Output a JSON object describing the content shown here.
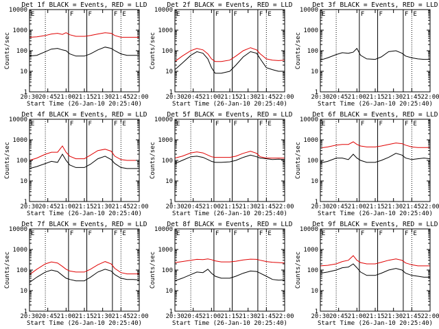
{
  "colors": {
    "background": "#ffffff",
    "axis": "#000000",
    "events": "#000000",
    "lld": "#e00000"
  },
  "shared": {
    "x_ticks": [
      "20:30",
      "20:45",
      "21:00",
      "21:15",
      "21:30",
      "21:45",
      "22:00"
    ],
    "y_ticks": [
      "1",
      "10",
      "100",
      "1000",
      "10000"
    ],
    "xlabel": "Start Time (26-Jan-10 20:25:40)",
    "ylabel": "Counts/sec",
    "solid_markers": [
      "21:02",
      "21:17",
      "21:38"
    ],
    "dotted_markers": [
      "20:43",
      "21:45"
    ],
    "flag_labels": [
      "E",
      "F",
      "F",
      "F",
      "E"
    ]
  },
  "chart_data": [
    {
      "type": "line",
      "title": "Det 1f BLACK = Events, RED = LLD",
      "xlim": [
        "20:30",
        "22:00"
      ],
      "ylim": [
        1,
        10000
      ],
      "log_y": true,
      "x": [
        "20:30",
        "20:36",
        "20:43",
        "20:48",
        "20:53",
        "20:57",
        "21:00",
        "21:03",
        "21:08",
        "21:15",
        "21:20",
        "21:26",
        "21:32",
        "21:37",
        "21:40",
        "21:45",
        "21:50",
        "21:55",
        "22:00"
      ],
      "series": [
        {
          "name": "Events",
          "color": "#000000",
          "values": [
            55,
            60,
            90,
            120,
            130,
            110,
            100,
            70,
            55,
            55,
            70,
            110,
            150,
            130,
            100,
            70,
            60,
            60,
            60
          ]
        },
        {
          "name": "LLD",
          "color": "#e00000",
          "values": [
            450,
            470,
            550,
            650,
            700,
            620,
            750,
            600,
            500,
            500,
            550,
            650,
            750,
            700,
            550,
            450,
            450,
            450,
            450
          ]
        }
      ]
    },
    {
      "type": "line",
      "title": "Det 2f BLACK = Events, RED = LLD",
      "xlim": [
        "20:30",
        "22:00"
      ],
      "ylim": [
        1,
        10000
      ],
      "log_y": true,
      "x": [
        "20:30",
        "20:36",
        "20:43",
        "20:48",
        "20:53",
        "20:57",
        "21:00",
        "21:03",
        "21:08",
        "21:15",
        "21:20",
        "21:26",
        "21:32",
        "21:37",
        "21:40",
        "21:45",
        "21:50",
        "21:55",
        "22:00"
      ],
      "series": [
        {
          "name": "Events",
          "color": "#000000",
          "values": [
            12,
            25,
            60,
            90,
            75,
            40,
            15,
            8,
            8,
            10,
            20,
            50,
            90,
            75,
            40,
            15,
            12,
            10,
            10
          ]
        },
        {
          "name": "LLD",
          "color": "#e00000",
          "values": [
            30,
            55,
            100,
            130,
            110,
            70,
            40,
            30,
            30,
            35,
            55,
            100,
            140,
            110,
            70,
            40,
            35,
            33,
            35
          ]
        }
      ]
    },
    {
      "type": "line",
      "title": "Det 3f BLACK = Events, RED = LLD",
      "xlim": [
        "20:30",
        "22:00"
      ],
      "ylim": [
        1,
        10000
      ],
      "log_y": true,
      "x": [
        "20:30",
        "20:36",
        "20:43",
        "20:48",
        "20:53",
        "20:57",
        "21:00",
        "21:03",
        "21:08",
        "21:15",
        "21:20",
        "21:26",
        "21:32",
        "21:37",
        "21:40",
        "21:45",
        "21:50",
        "21:55",
        "22:00"
      ],
      "series": [
        {
          "name": "Events",
          "color": "#000000",
          "values": [
            35,
            45,
            65,
            80,
            75,
            85,
            130,
            60,
            40,
            38,
            50,
            90,
            100,
            75,
            55,
            45,
            40,
            38,
            38
          ]
        }
      ]
    },
    {
      "type": "line",
      "title": "Det 4f BLACK = Events, RED = LLD",
      "xlim": [
        "20:30",
        "22:00"
      ],
      "ylim": [
        1,
        10000
      ],
      "log_y": true,
      "x": [
        "20:30",
        "20:36",
        "20:43",
        "20:48",
        "20:53",
        "20:57",
        "21:00",
        "21:03",
        "21:08",
        "21:15",
        "21:20",
        "21:26",
        "21:32",
        "21:37",
        "21:40",
        "21:45",
        "21:50",
        "21:55",
        "22:00"
      ],
      "series": [
        {
          "name": "Events",
          "color": "#000000",
          "values": [
            40,
            50,
            70,
            90,
            80,
            200,
            100,
            60,
            45,
            45,
            65,
            120,
            160,
            110,
            70,
            45,
            40,
            40,
            40
          ]
        },
        {
          "name": "LLD",
          "color": "#e00000",
          "values": [
            100,
            130,
            200,
            250,
            250,
            500,
            250,
            160,
            120,
            120,
            180,
            300,
            350,
            280,
            160,
            110,
            100,
            100,
            100
          ]
        }
      ]
    },
    {
      "type": "line",
      "title": "Det 5f BLACK = Events, RED = LLD",
      "xlim": [
        "20:30",
        "22:00"
      ],
      "ylim": [
        1,
        10000
      ],
      "log_y": true,
      "x": [
        "20:30",
        "20:36",
        "20:43",
        "20:48",
        "20:53",
        "20:57",
        "21:00",
        "21:03",
        "21:08",
        "21:15",
        "21:20",
        "21:26",
        "21:32",
        "21:37",
        "21:40",
        "21:45",
        "21:50",
        "21:55",
        "22:00"
      ],
      "series": [
        {
          "name": "Events",
          "color": "#000000",
          "values": [
            70,
            100,
            150,
            160,
            140,
            110,
            90,
            80,
            80,
            85,
            100,
            140,
            180,
            150,
            130,
            120,
            110,
            115,
            110
          ]
        },
        {
          "name": "LLD",
          "color": "#e00000",
          "values": [
            130,
            160,
            230,
            260,
            230,
            180,
            150,
            140,
            140,
            140,
            160,
            220,
            280,
            220,
            150,
            130,
            130,
            130,
            130
          ]
        }
      ]
    },
    {
      "type": "line",
      "title": "Det 6f BLACK = Events, RED = LLD",
      "xlim": [
        "20:30",
        "22:00"
      ],
      "ylim": [
        1,
        10000
      ],
      "log_y": true,
      "x": [
        "20:30",
        "20:36",
        "20:43",
        "20:48",
        "20:53",
        "20:57",
        "21:00",
        "21:03",
        "21:08",
        "21:15",
        "21:20",
        "21:26",
        "21:32",
        "21:37",
        "21:40",
        "21:45",
        "21:50",
        "21:55",
        "22:00"
      ],
      "series": [
        {
          "name": "Events",
          "color": "#000000",
          "values": [
            75,
            90,
            130,
            130,
            110,
            200,
            130,
            100,
            80,
            80,
            100,
            140,
            220,
            180,
            130,
            110,
            120,
            130,
            120
          ]
        },
        {
          "name": "LLD",
          "color": "#e00000",
          "values": [
            400,
            450,
            550,
            600,
            600,
            800,
            600,
            500,
            450,
            450,
            500,
            600,
            700,
            650,
            550,
            450,
            420,
            420,
            420
          ]
        }
      ]
    },
    {
      "type": "line",
      "title": "Det 7f BLACK = Events, RED = LLD",
      "xlim": [
        "20:30",
        "22:00"
      ],
      "ylim": [
        1,
        10000
      ],
      "log_y": true,
      "x": [
        "20:30",
        "20:36",
        "20:43",
        "20:48",
        "20:53",
        "20:57",
        "21:00",
        "21:03",
        "21:08",
        "21:15",
        "21:20",
        "21:26",
        "21:32",
        "21:37",
        "21:40",
        "21:45",
        "21:50",
        "21:55",
        "22:00"
      ],
      "series": [
        {
          "name": "Events",
          "color": "#000000",
          "values": [
            25,
            45,
            80,
            100,
            85,
            55,
            40,
            35,
            30,
            30,
            45,
            80,
            110,
            90,
            60,
            40,
            35,
            35,
            33
          ]
        },
        {
          "name": "LLD",
          "color": "#e00000",
          "values": [
            60,
            110,
            200,
            250,
            220,
            150,
            110,
            90,
            80,
            80,
            110,
            180,
            260,
            200,
            120,
            75,
            65,
            65,
            65
          ]
        }
      ]
    },
    {
      "type": "line",
      "title": "Det 8f BLACK = Events, RED = LLD",
      "xlim": [
        "20:30",
        "22:00"
      ],
      "ylim": [
        1,
        10000
      ],
      "log_y": true,
      "x": [
        "20:30",
        "20:36",
        "20:43",
        "20:48",
        "20:53",
        "20:57",
        "21:00",
        "21:03",
        "21:08",
        "21:15",
        "21:20",
        "21:26",
        "21:32",
        "21:37",
        "21:40",
        "21:45",
        "21:50",
        "21:55",
        "22:00"
      ],
      "series": [
        {
          "name": "Events",
          "color": "#000000",
          "values": [
            30,
            40,
            60,
            80,
            75,
            110,
            70,
            50,
            40,
            40,
            50,
            70,
            90,
            85,
            70,
            50,
            35,
            32,
            33
          ]
        },
        {
          "name": "LLD",
          "color": "#e00000",
          "values": [
            230,
            260,
            300,
            330,
            320,
            350,
            320,
            280,
            250,
            250,
            270,
            310,
            340,
            330,
            300,
            260,
            240,
            230,
            220
          ]
        }
      ]
    },
    {
      "type": "line",
      "title": "Det 9f BLACK = Events, RED = LLD",
      "xlim": [
        "20:30",
        "22:00"
      ],
      "ylim": [
        1,
        10000
      ],
      "log_y": true,
      "x": [
        "20:30",
        "20:36",
        "20:43",
        "20:48",
        "20:53",
        "20:57",
        "21:00",
        "21:03",
        "21:08",
        "21:15",
        "21:20",
        "21:26",
        "21:32",
        "21:37",
        "21:40",
        "21:45",
        "21:50",
        "21:55",
        "22:00"
      ],
      "series": [
        {
          "name": "Events",
          "color": "#000000",
          "values": [
            70,
            80,
            100,
            130,
            140,
            200,
            130,
            80,
            55,
            55,
            70,
            100,
            120,
            100,
            70,
            55,
            50,
            45,
            45
          ]
        },
        {
          "name": "LLD",
          "color": "#e00000",
          "values": [
            160,
            170,
            200,
            260,
            300,
            500,
            300,
            230,
            200,
            200,
            240,
            300,
            350,
            300,
            220,
            180,
            160,
            160,
            160
          ]
        }
      ]
    }
  ]
}
